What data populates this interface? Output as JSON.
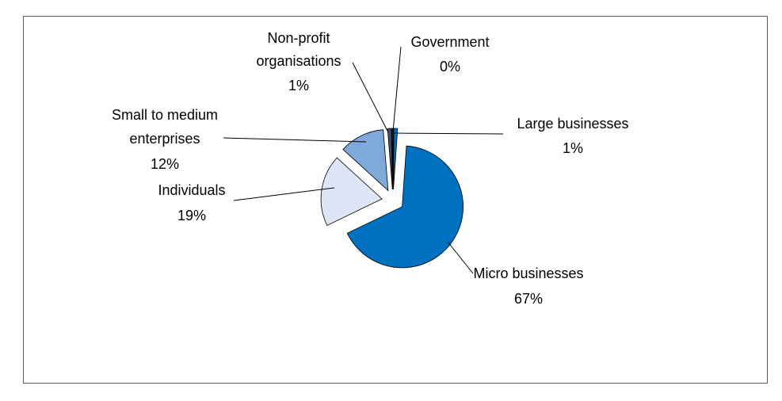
{
  "chart_data": {
    "type": "pie",
    "title": "",
    "slices": [
      {
        "label": "Micro businesses",
        "pct_label": "67%",
        "value": 67,
        "color": "#0070c0"
      },
      {
        "label": "Individuals",
        "pct_label": "19%",
        "value": 19,
        "color": "#dde6f7"
      },
      {
        "label": "Small to medium enterprises",
        "pct_label": "12%",
        "value": 12,
        "color": "#7fa9d9"
      },
      {
        "label": "Non-profit organisations",
        "pct_label": "1%",
        "value": 1,
        "color": "#3b4f73"
      },
      {
        "label": "Government",
        "pct_label": "0%",
        "value": 0.4,
        "color": "#0f1e3c"
      },
      {
        "label": "Large businesses",
        "pct_label": "1%",
        "value": 1,
        "color": "#0070c0"
      }
    ],
    "legend": "none",
    "labels": "outside with leader lines"
  }
}
